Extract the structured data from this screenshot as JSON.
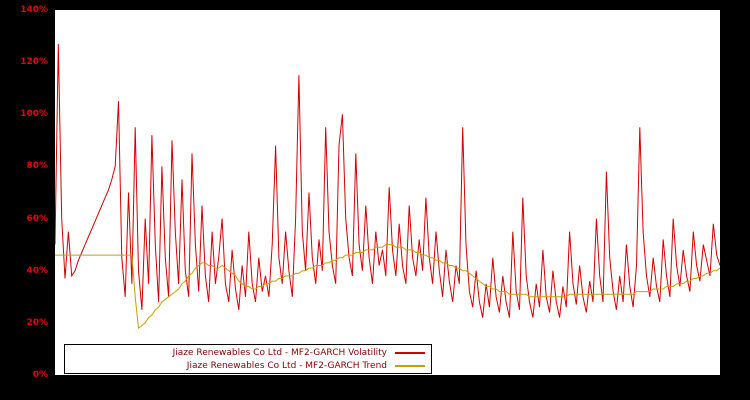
{
  "window": {
    "background": "#000000",
    "plot_background": "#ffffff",
    "axis_label_color": "#e60000",
    "legend_text_color": "#8b0000"
  },
  "chart_data": {
    "type": "line",
    "title": "",
    "xlabel": "",
    "ylabel": "",
    "ylim": [
      0,
      140
    ],
    "grid": false,
    "legend_position": "bottom-left",
    "x_axis_labels_visible": false,
    "y_ticks": [
      "0%",
      "20%",
      "40%",
      "60%",
      "80%",
      "100%",
      "120%",
      "140%"
    ],
    "y_tick_values": [
      0,
      20,
      40,
      60,
      80,
      100,
      120,
      140
    ],
    "series": [
      {
        "name": "Jiaze Renewables Co Ltd - MF2-GARCH Volatility",
        "color": "#d40000",
        "values": [
          50,
          127,
          60,
          37,
          55,
          38,
          40,
          44,
          47,
          50,
          53,
          56,
          59,
          62,
          65,
          68,
          71,
          75,
          80,
          105,
          45,
          30,
          70,
          35,
          95,
          40,
          25,
          60,
          35,
          92,
          50,
          28,
          80,
          45,
          30,
          90,
          55,
          35,
          75,
          40,
          30,
          85,
          50,
          32,
          65,
          38,
          28,
          55,
          35,
          45,
          60,
          35,
          28,
          48,
          33,
          25,
          42,
          30,
          55,
          35,
          28,
          45,
          32,
          38,
          30,
          50,
          88,
          45,
          35,
          55,
          40,
          30,
          60,
          115,
          55,
          40,
          70,
          45,
          35,
          52,
          40,
          95,
          55,
          42,
          35,
          88,
          100,
          60,
          45,
          38,
          85,
          50,
          40,
          65,
          45,
          35,
          55,
          42,
          48,
          38,
          72,
          48,
          38,
          58,
          42,
          35,
          65,
          45,
          38,
          52,
          40,
          68,
          45,
          35,
          55,
          40,
          30,
          48,
          36,
          28,
          42,
          35,
          95,
          50,
          32,
          26,
          40,
          28,
          22,
          35,
          26,
          45,
          30,
          24,
          38,
          28,
          22,
          55,
          32,
          25,
          68,
          38,
          28,
          22,
          35,
          26,
          48,
          30,
          24,
          40,
          28,
          22,
          34,
          26,
          55,
          35,
          27,
          42,
          30,
          24,
          36,
          28,
          60,
          38,
          28,
          78,
          45,
          32,
          25,
          38,
          28,
          50,
          34,
          26,
          42,
          95,
          55,
          38,
          30,
          45,
          34,
          28,
          52,
          38,
          30,
          60,
          42,
          34,
          48,
          38,
          32,
          55,
          42,
          36,
          50,
          44,
          38,
          58,
          46,
          42
        ]
      },
      {
        "name": "Jiaze Renewables Co Ltd - MF2-GARCH Trend",
        "color": "#c8a000",
        "values": [
          46,
          46,
          46,
          46,
          46,
          46,
          46,
          46,
          46,
          46,
          46,
          46,
          46,
          46,
          46,
          46,
          46,
          46,
          46,
          46,
          46,
          46,
          46,
          46,
          30,
          18,
          19,
          20,
          22,
          23,
          25,
          26,
          28,
          29,
          30,
          31,
          32,
          33,
          35,
          36,
          38,
          39,
          41,
          42,
          43,
          43,
          42,
          42,
          41,
          41,
          42,
          41,
          40,
          39,
          38,
          36,
          35,
          34,
          34,
          33,
          33,
          34,
          34,
          35,
          35,
          36,
          36,
          37,
          37,
          38,
          38,
          38,
          39,
          39,
          40,
          40,
          41,
          41,
          42,
          42,
          42,
          43,
          43,
          44,
          44,
          45,
          45,
          46,
          46,
          46,
          47,
          47,
          47,
          48,
          48,
          48,
          49,
          49,
          49,
          50,
          50,
          50,
          49,
          49,
          49,
          48,
          48,
          48,
          47,
          47,
          46,
          46,
          45,
          45,
          44,
          44,
          43,
          43,
          42,
          42,
          41,
          41,
          40,
          40,
          39,
          38,
          37,
          36,
          35,
          34,
          34,
          33,
          33,
          32,
          32,
          32,
          31,
          31,
          31,
          31,
          31,
          31,
          30,
          30,
          30,
          30,
          30,
          30,
          30,
          30,
          30,
          30,
          30,
          30,
          31,
          31,
          31,
          31,
          31,
          31,
          31,
          31,
          31,
          31,
          31,
          31,
          31,
          31,
          31,
          31,
          31,
          31,
          31,
          31,
          32,
          32,
          32,
          32,
          32,
          33,
          33,
          33,
          33,
          34,
          34,
          34,
          35,
          35,
          35,
          36,
          36,
          37,
          37,
          38,
          38,
          39,
          39,
          40,
          40,
          41
        ]
      }
    ]
  },
  "legend": {
    "items": [
      {
        "label": "Jiaze Renewables Co Ltd - MF2-GARCH Volatility",
        "color": "#d40000"
      },
      {
        "label": "Jiaze Renewables Co Ltd - MF2-GARCH Trend",
        "color": "#c8a000"
      }
    ]
  }
}
